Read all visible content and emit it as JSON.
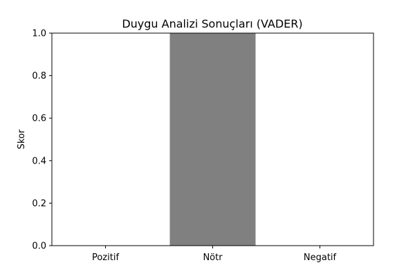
{
  "chart_data": {
    "type": "bar",
    "title": "Duygu Analizi Sonuçları (VADER)",
    "xlabel": "",
    "ylabel": "Skor",
    "categories": [
      "Pozitif",
      "Nötr",
      "Negatif"
    ],
    "values": [
      0.0,
      1.0,
      0.0
    ],
    "ylim": [
      0,
      1.0
    ],
    "yticks": [
      "0.0",
      "0.2",
      "0.4",
      "0.6",
      "0.8",
      "1.0"
    ],
    "colors": [
      "#00ff00",
      "#808080",
      "#ff0000"
    ],
    "grid": false
  }
}
